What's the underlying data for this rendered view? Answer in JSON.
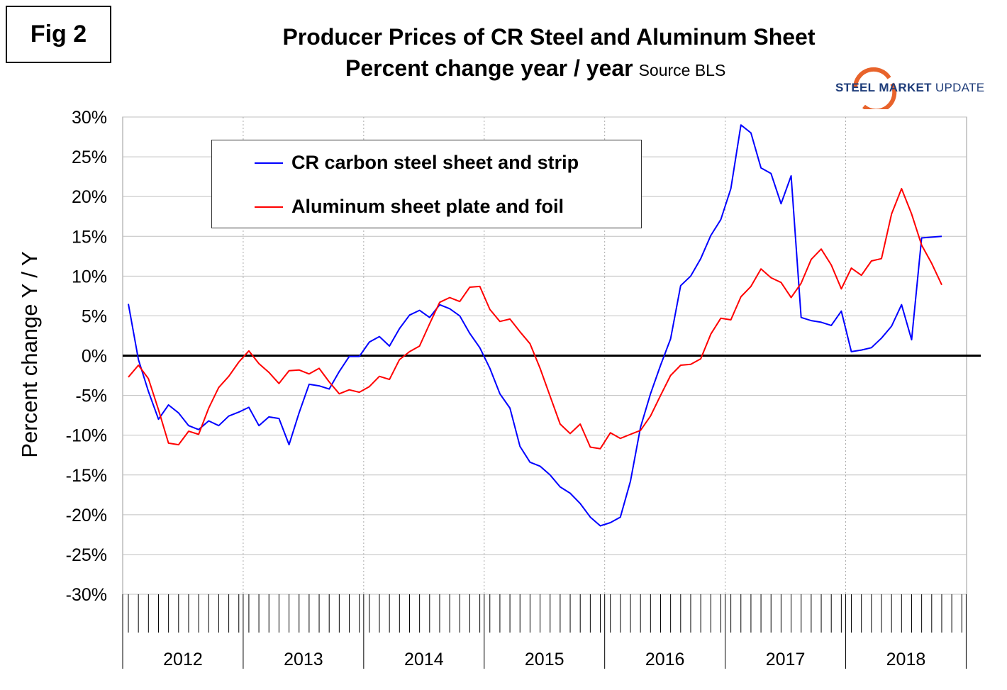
{
  "figure_label": "Fig 2",
  "title_line1": "Producer Prices of CR Steel and Aluminum Sheet",
  "title_line2": "Percent change year / year",
  "source": "Source BLS",
  "logo": {
    "word1": "STEEL",
    "word2": "MARKET",
    "word3": "UPDATE"
  },
  "colors": {
    "steel": "#0000ff",
    "aluminum": "#ff0000",
    "grid": "#c0c0c0",
    "zero": "#000000"
  },
  "chart_data": {
    "type": "line",
    "ylabel": "Percent change Y / Y",
    "ylim": [
      -30,
      30
    ],
    "y_ticks": [
      "30%",
      "25%",
      "20%",
      "15%",
      "10%",
      "5%",
      "0%",
      "-5%",
      "-10%",
      "-15%",
      "-20%",
      "-25%",
      "-30%"
    ],
    "years": [
      "2012",
      "2013",
      "2014",
      "2015",
      "2016",
      "2017",
      "2018"
    ],
    "months_per_year": 12,
    "grid": true,
    "legend_position": "top-left",
    "series": [
      {
        "name": "CR carbon steel sheet and strip",
        "color": "#0000ff",
        "values": [
          6.5,
          -0.5,
          -4.5,
          -8.0,
          -6.2,
          -7.2,
          -8.8,
          -9.3,
          -8.2,
          -8.8,
          -7.6,
          -7.1,
          -6.5,
          -8.8,
          -7.7,
          -7.9,
          -11.2,
          -7.2,
          -3.6,
          -3.8,
          -4.2,
          -2.0,
          -0.1,
          -0.1,
          1.7,
          2.4,
          1.2,
          3.4,
          5.1,
          5.7,
          4.8,
          6.4,
          5.9,
          5.0,
          2.8,
          1.0,
          -1.6,
          -4.8,
          -6.6,
          -11.4,
          -13.4,
          -13.9,
          -15.0,
          -16.5,
          -17.3,
          -18.6,
          -20.3,
          -21.4,
          -21.0,
          -20.3,
          -15.8,
          -9.0,
          -4.8,
          -1.2,
          2.1,
          8.8,
          10.0,
          12.2,
          15.1,
          17.1,
          21.0,
          29.0,
          28.0,
          23.6,
          22.9,
          19.1,
          22.6,
          4.8,
          4.4,
          4.2,
          3.8,
          5.6,
          0.5,
          0.7,
          1.0,
          2.2,
          3.7,
          6.4,
          2.0,
          14.8,
          14.9,
          15.0
        ]
      },
      {
        "name": "Aluminum sheet plate and foil",
        "color": "#ff0000",
        "values": [
          -2.7,
          -1.2,
          -2.9,
          -6.8,
          -11.0,
          -11.2,
          -9.5,
          -9.9,
          -6.6,
          -4.0,
          -2.6,
          -0.8,
          0.6,
          -1.0,
          -2.1,
          -3.5,
          -1.9,
          -1.8,
          -2.3,
          -1.6,
          -3.3,
          -4.8,
          -4.3,
          -4.6,
          -3.9,
          -2.6,
          -3.0,
          -0.5,
          0.5,
          1.2,
          4.0,
          6.7,
          7.3,
          6.8,
          8.6,
          8.7,
          5.8,
          4.3,
          4.6,
          3.0,
          1.5,
          -1.6,
          -5.1,
          -8.6,
          -9.8,
          -8.6,
          -11.5,
          -11.7,
          -9.7,
          -10.4,
          -9.9,
          -9.4,
          -7.6,
          -5.0,
          -2.5,
          -1.2,
          -1.1,
          -0.4,
          2.7,
          4.7,
          4.5,
          7.4,
          8.7,
          10.9,
          9.8,
          9.2,
          7.3,
          9.1,
          12.1,
          13.4,
          11.4,
          8.4,
          11.0,
          10.1,
          11.9,
          12.2,
          17.8,
          21.0,
          17.8,
          13.9,
          11.6,
          8.9
        ]
      }
    ]
  }
}
